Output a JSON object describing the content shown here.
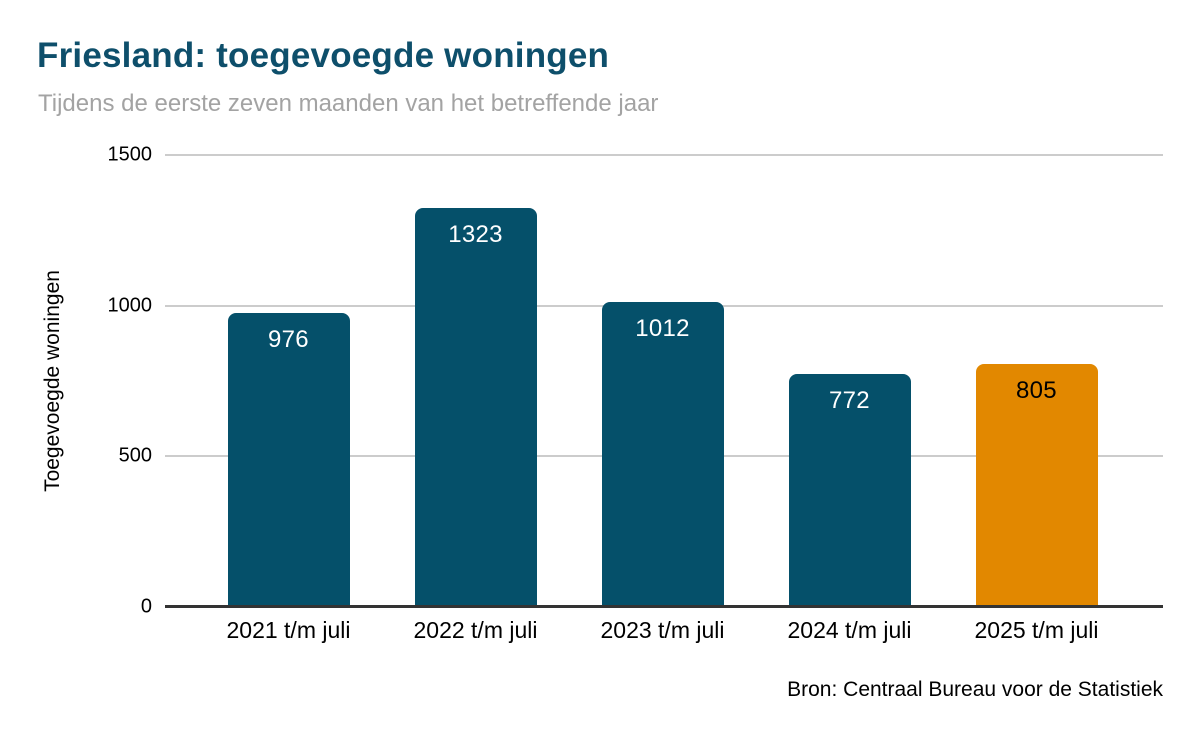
{
  "header": {
    "title": "Friesland: toegevoegde woningen",
    "subtitle": "Tijdens de eerste zeven maanden van het betreffende jaar"
  },
  "chart_data": {
    "type": "bar",
    "title": "Friesland: toegevoegde woningen",
    "subtitle": "Tijdens de eerste zeven maanden van het betreffende jaar",
    "categories": [
      "2021 t/m juli",
      "2022 t/m juli",
      "2023 t/m juli",
      "2024 t/m juli",
      "2025 t/m juli"
    ],
    "values": [
      976,
      1323,
      1012,
      772,
      805
    ],
    "value_labels": [
      "976",
      "1323",
      "1012",
      "772",
      "805"
    ],
    "xlabel": "",
    "ylabel": "Toegevoegde woningen",
    "ylim": [
      0,
      1500
    ],
    "yticks": [
      0,
      500,
      1000,
      1500
    ],
    "grid": "horizontal",
    "legend": "none",
    "highlight_index": 4,
    "colors": {
      "bar_default": "#05506a",
      "bar_highlight": "#e28800",
      "value_label_default": "#ffffff",
      "value_label_highlight": "#000000",
      "gridline": "#cccccc",
      "axis_line": "#333333",
      "title": "#0e4f6b",
      "subtitle": "#a3a3a3"
    }
  },
  "footer": {
    "source": "Bron: Centraal Bureau voor de Statistiek"
  }
}
